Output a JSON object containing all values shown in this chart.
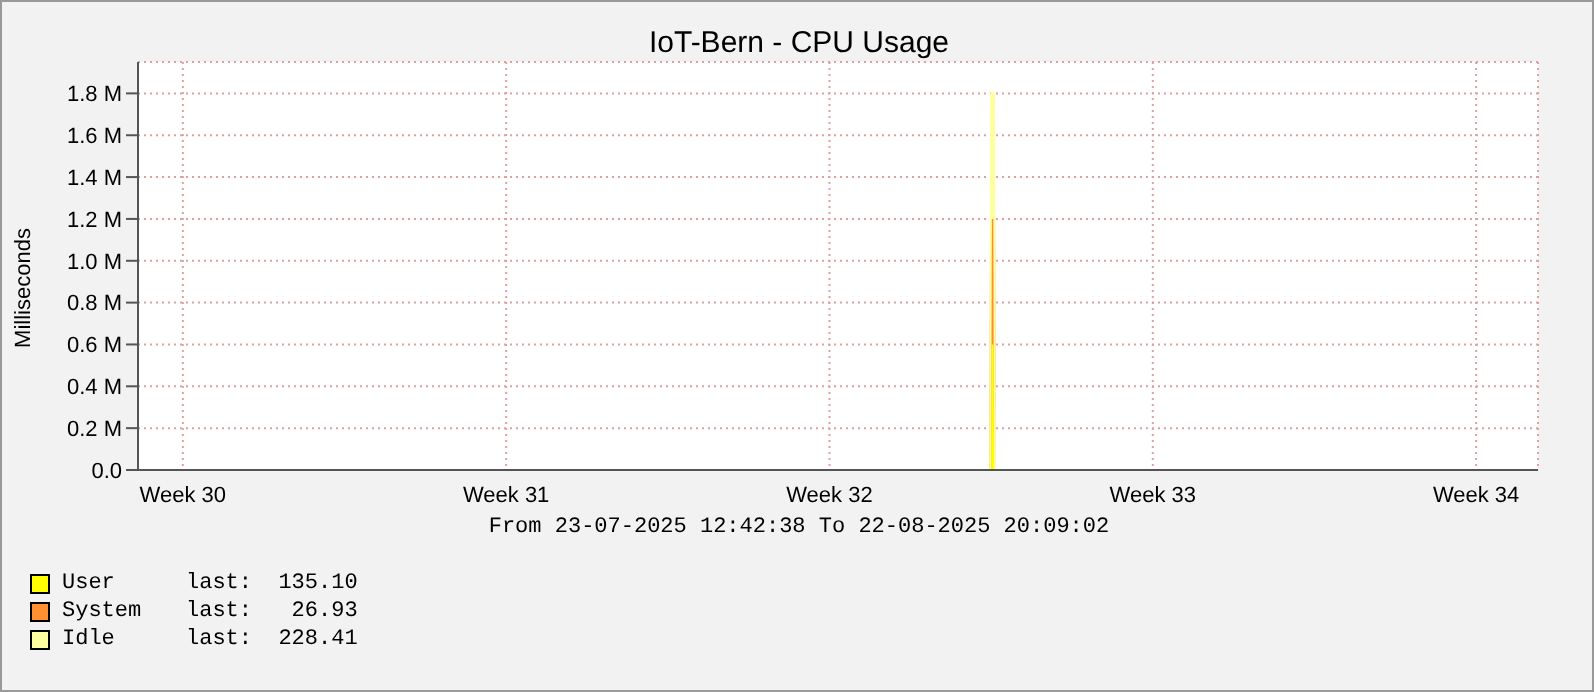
{
  "chart_data": {
    "type": "area",
    "title": "IoT-Bern - CPU Usage",
    "ylabel": "Milliseconds",
    "stacked": true,
    "grid": true,
    "legend": "bottom left",
    "x": [
      "2025-07-23T12:42",
      "2025-08-10T23:30",
      "2025-08-11T00:00",
      "2025-08-11T01:30",
      "2025-08-11T02:00",
      "2025-08-22T20:09"
    ],
    "xlim": [
      "2025-07-23T12:42",
      "2025-08-22T20:09"
    ],
    "xticks": [
      {
        "value": "2025-07-24T12:00",
        "label": "Week 30"
      },
      {
        "value": "2025-07-31T12:00",
        "label": "Week 31"
      },
      {
        "value": "2025-08-07T12:00",
        "label": "Week 32"
      },
      {
        "value": "2025-08-14T12:00",
        "label": "Week 33"
      },
      {
        "value": "2025-08-21T12:00",
        "label": "Week 34"
      }
    ],
    "ylim": [
      0,
      1950000
    ],
    "yticks": [
      {
        "value": 0,
        "label": "0.0"
      },
      {
        "value": 200000,
        "label": "0.2 M"
      },
      {
        "value": 400000,
        "label": "0.4 M"
      },
      {
        "value": 600000,
        "label": "0.6 M"
      },
      {
        "value": 800000,
        "label": "0.8 M"
      },
      {
        "value": 1000000,
        "label": "1.0 M"
      },
      {
        "value": 1200000,
        "label": "1.2 M"
      },
      {
        "value": 1400000,
        "label": "1.4 M"
      },
      {
        "value": 1600000,
        "label": "1.6 M"
      },
      {
        "value": 1800000,
        "label": "1.8 M"
      }
    ],
    "series": [
      {
        "name": "User",
        "color": "#ffff00",
        "values": [
          0,
          0,
          600000,
          600000,
          0,
          0
        ]
      },
      {
        "name": "System",
        "color": "#ff9030",
        "values": [
          0,
          0,
          600000,
          600000,
          0,
          0
        ]
      },
      {
        "name": "Idle",
        "color": "#ffffa0",
        "values": [
          0,
          0,
          600000,
          600000,
          0,
          0
        ]
      }
    ],
    "annotations": [
      "From 23-07-2025 12:42:38 To 22-08-2025 20:09:02",
      "last:  135.10",
      "last:   26.93",
      "last:  228.41"
    ]
  }
}
